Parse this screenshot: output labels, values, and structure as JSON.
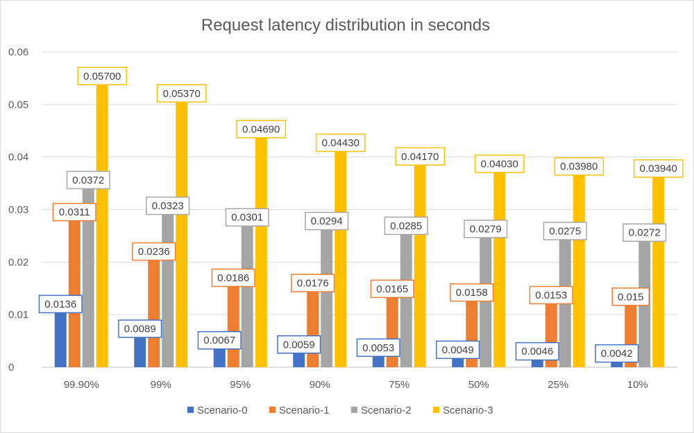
{
  "chart_data": {
    "type": "bar",
    "title": "Request latency distribution in seconds",
    "xlabel": "",
    "ylabel": "",
    "ylim": [
      0,
      0.06
    ],
    "yticks": [
      "0",
      "0.01",
      "0.02",
      "0.03",
      "0.04",
      "0.05",
      "0.06"
    ],
    "grid": true,
    "legend_position": "bottom",
    "categories": [
      "99.90%",
      "99%",
      "95%",
      "90%",
      "75%",
      "50%",
      "25%",
      "10%"
    ],
    "series": [
      {
        "name": "Scenario-0",
        "color": "#4472c4",
        "values": [
          0.0136,
          0.0089,
          0.0067,
          0.0059,
          0.0053,
          0.0049,
          0.0046,
          0.0042
        ],
        "labels": [
          "0.0136",
          "0.0089",
          "0.0067",
          "0.0059",
          "0.0053",
          "0.0049",
          "0.0046",
          "0.0042"
        ]
      },
      {
        "name": "Scenario-1",
        "color": "#ed7d31",
        "values": [
          0.0311,
          0.0236,
          0.0186,
          0.0176,
          0.0165,
          0.0158,
          0.0153,
          0.015
        ],
        "labels": [
          "0.0311",
          "0.0236",
          "0.0186",
          "0.0176",
          "0.0165",
          "0.0158",
          "0.0153",
          "0.015"
        ]
      },
      {
        "name": "Scenario-2",
        "color": "#a5a5a5",
        "values": [
          0.0372,
          0.0323,
          0.0301,
          0.0294,
          0.0285,
          0.0279,
          0.0275,
          0.0272
        ],
        "labels": [
          "0.0372",
          "0.0323",
          "0.0301",
          "0.0294",
          "0.0285",
          "0.0279",
          "0.0275",
          "0.0272"
        ]
      },
      {
        "name": "Scenario-3",
        "color": "#ffc000",
        "values": [
          0.057,
          0.0537,
          0.0469,
          0.0443,
          0.0417,
          0.0403,
          0.0398,
          0.0394
        ],
        "labels": [
          "0.05700",
          "0.05370",
          "0.04690",
          "0.04430",
          "0.04170",
          "0.04030",
          "0.03980",
          "0.03940"
        ]
      }
    ]
  }
}
